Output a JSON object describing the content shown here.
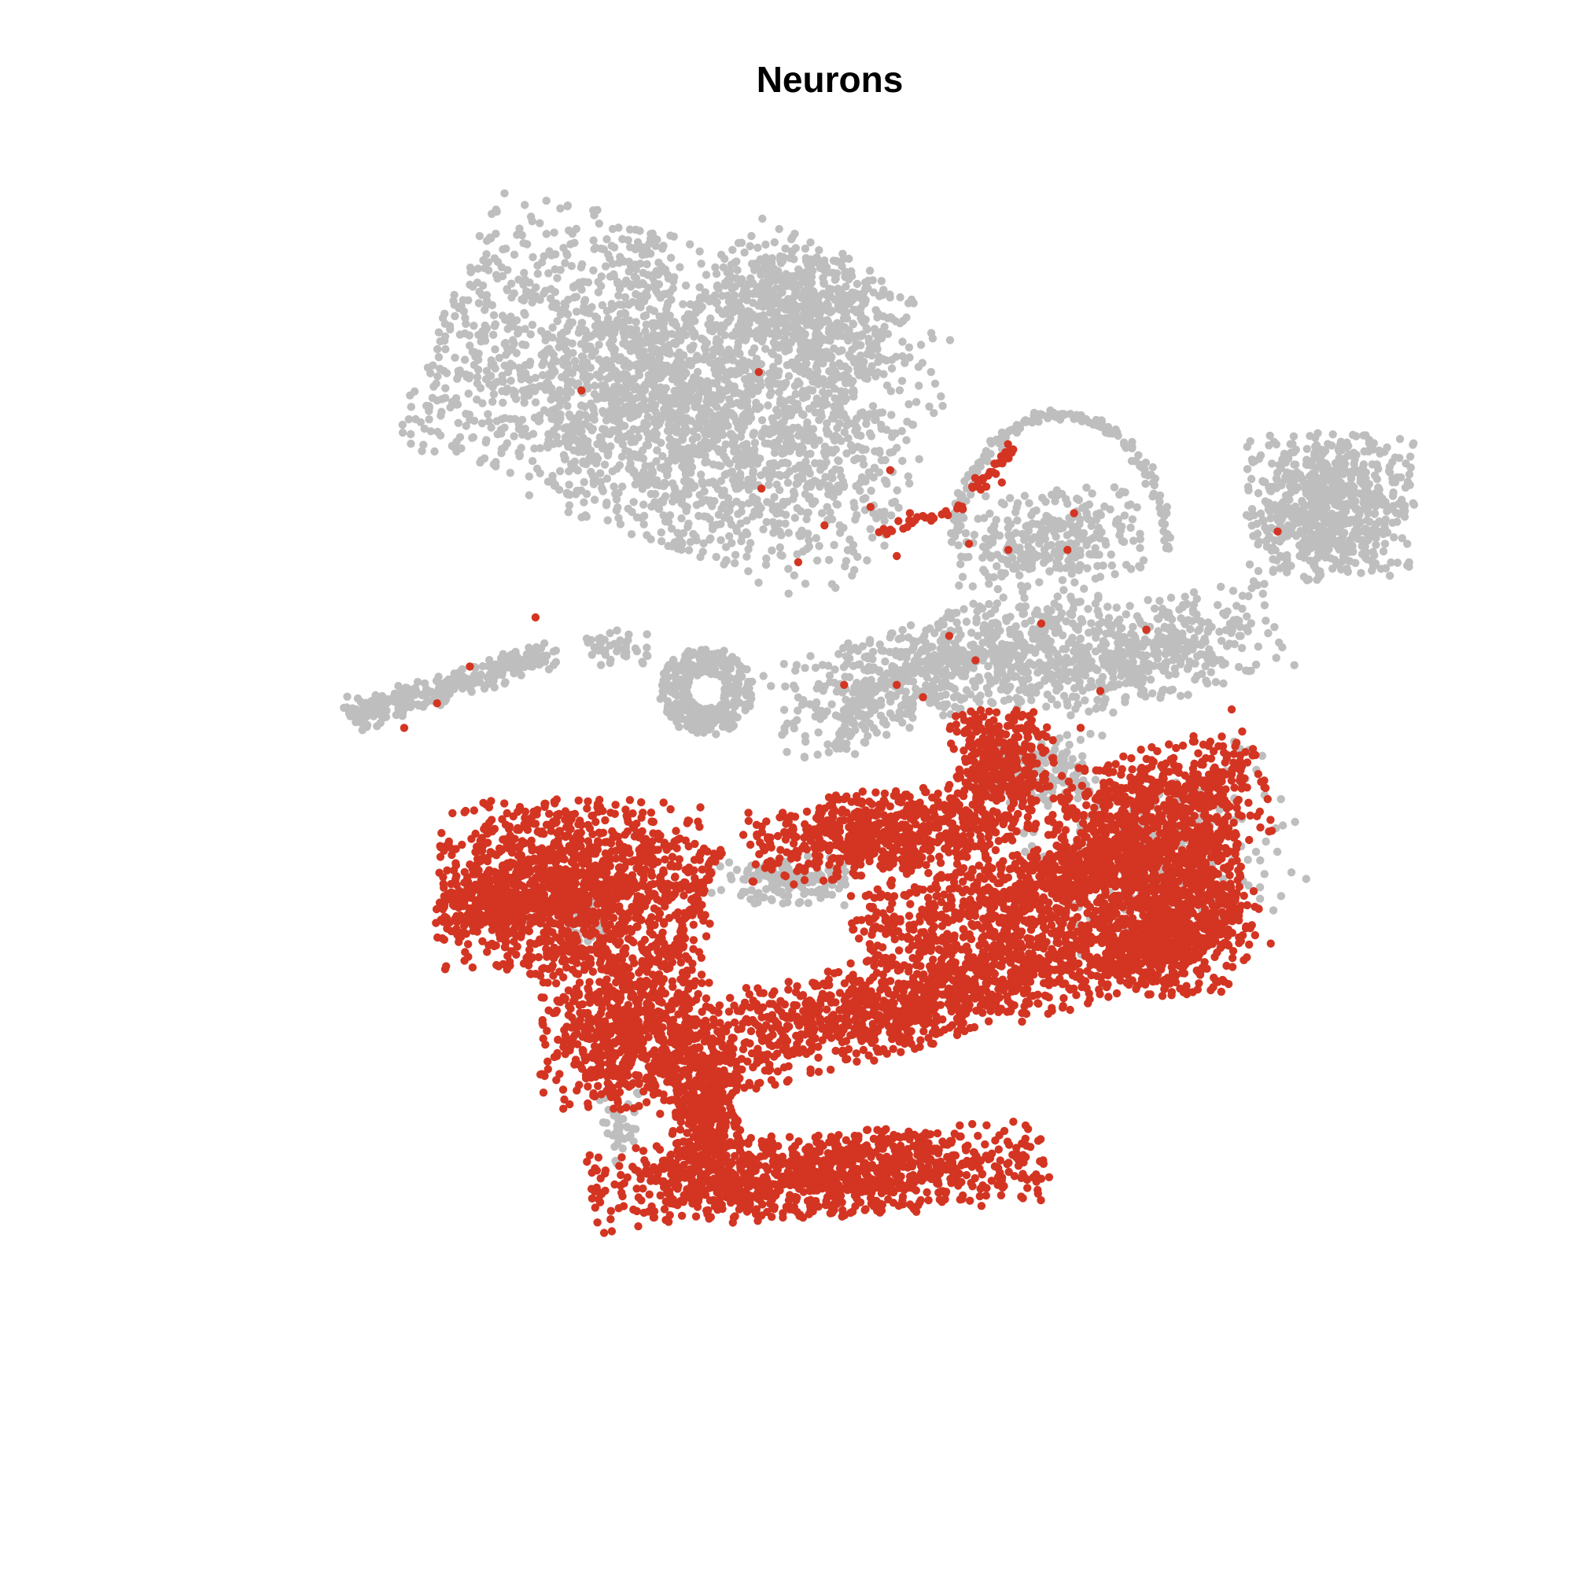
{
  "chart_data": {
    "type": "scatter",
    "title": "Neurons",
    "xlabel": "",
    "ylabel": "",
    "axes_visible": false,
    "grid": false,
    "legend": "none",
    "colors": {
      "neuron": "#d33522",
      "other": "#bebebe"
    },
    "xlim": [
      0,
      100
    ],
    "ylim": [
      0,
      100
    ],
    "series": [
      {
        "group": "other",
        "clusters": [
          {
            "cx": 38.0,
            "cy": 80.5,
            "sx": 12.0,
            "sy": 7.5,
            "n": 2600,
            "rot": -0.38
          },
          {
            "cx": 47.5,
            "cy": 88.0,
            "sx": 4.5,
            "sy": 3.2,
            "n": 500,
            "rot": -0.55
          },
          {
            "cx": 87.5,
            "cy": 71.5,
            "sx": 4.0,
            "sy": 3.8,
            "n": 700,
            "rot": 0.0
          },
          {
            "cx": 58.0,
            "cy": 58.5,
            "sx": 8.5,
            "sy": 2.6,
            "n": 650,
            "rot": 0.32
          },
          {
            "cx": 73.0,
            "cy": 59.5,
            "sx": 7.0,
            "sy": 2.6,
            "n": 500,
            "rot": 0.26
          },
          {
            "cx": 66.0,
            "cy": 69.0,
            "sx": 4.5,
            "sy": 2.4,
            "n": 280,
            "rot": 0.1
          },
          {
            "cx": 46.0,
            "cy": 41.0,
            "sx": 3.5,
            "sy": 1.3,
            "n": 130,
            "rot": 0.0
          },
          {
            "cx": 31.0,
            "cy": 38.0,
            "sx": 1.0,
            "sy": 1.2,
            "n": 40,
            "rot": 0.0
          },
          {
            "cx": 33.5,
            "cy": 21.0,
            "sx": 1.0,
            "sy": 2.0,
            "n": 40,
            "rot": 0.0
          },
          {
            "cx": 75.0,
            "cy": 43.5,
            "sx": 6.5,
            "sy": 4.5,
            "n": 220,
            "rot": 0.3
          },
          {
            "cx": 65.5,
            "cy": 50.0,
            "sx": 3.0,
            "sy": 2.0,
            "n": 150,
            "rot": 0.0
          },
          {
            "cx": 33.5,
            "cy": 60.0,
            "sx": 1.8,
            "sy": 0.9,
            "n": 40,
            "rot": 0.0
          }
        ],
        "ring": {
          "cx": 40.0,
          "cy": 56.5,
          "r_in": 1.4,
          "r_out": 3.6,
          "n": 320
        },
        "arcs": [
          {
            "cx": 67.0,
            "cy": 68.0,
            "rx": 8.0,
            "ry": 11.0,
            "a0": 0.0,
            "a1": 3.1,
            "n": 170
          },
          {
            "cx": 62.0,
            "cy": 52.5,
            "rx": 11.5,
            "ry": 7.0,
            "a0": 1.4,
            "a1": 3.3,
            "n": 140
          }
        ],
        "streaks": [
          {
            "x0": 13.0,
            "y0": 54.5,
            "x1": 28.0,
            "y1": 59.5,
            "w": 1.1,
            "n": 300
          }
        ]
      },
      {
        "group": "neuron",
        "clusters": [
          {
            "cx": 30.0,
            "cy": 40.5,
            "sx": 6.5,
            "sy": 4.5,
            "n": 1300,
            "rot": 0.0
          },
          {
            "cx": 23.5,
            "cy": 39.0,
            "sx": 2.8,
            "sy": 1.6,
            "n": 220,
            "rot": 0.2
          },
          {
            "cx": 34.0,
            "cy": 29.0,
            "sx": 4.2,
            "sy": 4.2,
            "n": 700,
            "rot": 0.0
          },
          {
            "cx": 40.0,
            "cy": 21.5,
            "sx": 1.8,
            "sy": 4.0,
            "n": 350,
            "rot": 0.0
          },
          {
            "cx": 48.5,
            "cy": 17.0,
            "sx": 11.0,
            "sy": 2.2,
            "n": 1100,
            "rot": 0.07
          },
          {
            "cx": 54.0,
            "cy": 45.0,
            "sx": 7.0,
            "sy": 2.2,
            "n": 700,
            "rot": 0.1
          },
          {
            "cx": 57.5,
            "cy": 32.0,
            "sx": 16.0,
            "sy": 2.6,
            "n": 1500,
            "rot": 0.27
          },
          {
            "cx": 65.0,
            "cy": 40.0,
            "sx": 9.0,
            "sy": 2.2,
            "n": 700,
            "rot": 0.2
          },
          {
            "cx": 62.5,
            "cy": 51.0,
            "sx": 2.5,
            "sy": 2.5,
            "n": 320,
            "rot": 0.0
          },
          {
            "cx": 74.0,
            "cy": 47.0,
            "sx": 5.5,
            "sy": 3.0,
            "n": 600,
            "rot": 0.3
          },
          {
            "cx": 75.0,
            "cy": 37.0,
            "sx": 3.2,
            "sy": 3.5,
            "n": 500,
            "rot": 0.0
          },
          {
            "cx": 78.0,
            "cy": 41.5,
            "sx": 2.0,
            "sy": 4.0,
            "n": 250,
            "rot": 0.0
          },
          {
            "cx": 70.0,
            "cy": 42.5,
            "sx": 4.0,
            "sy": 1.4,
            "n": 250,
            "rot": 0.32
          }
        ],
        "specks": [
          [
            44.0,
            82.5
          ],
          [
            30.5,
            81.0
          ],
          [
            54.0,
            74.5
          ],
          [
            44.2,
            73.0
          ],
          [
            62.5,
            73.5
          ],
          [
            55.5,
            71.0
          ],
          [
            60.0,
            68.5
          ],
          [
            49.0,
            70.0
          ],
          [
            52.5,
            71.5
          ],
          [
            47.0,
            67.0
          ],
          [
            22.0,
            58.5
          ],
          [
            19.5,
            55.5
          ],
          [
            17.0,
            53.5
          ],
          [
            27.0,
            62.5
          ],
          [
            83.5,
            69.5
          ],
          [
            68.0,
            71.0
          ],
          [
            67.5,
            68.0
          ],
          [
            65.5,
            62.0
          ],
          [
            58.5,
            61.0
          ],
          [
            60.5,
            59.0
          ],
          [
            54.5,
            57.0
          ],
          [
            50.5,
            57.0
          ],
          [
            56.5,
            56.0
          ],
          [
            70.0,
            56.5
          ],
          [
            68.5,
            53.5
          ],
          [
            73.5,
            61.5
          ],
          [
            63.0,
            68.0
          ],
          [
            54.5,
            67.5
          ],
          [
            79.0,
            52.0
          ],
          [
            80.0,
            55.0
          ]
        ],
        "streaks": [
          {
            "x0": 53.0,
            "y0": 69.5,
            "x1": 60.0,
            "y1": 71.5,
            "w": 0.35,
            "n": 30
          },
          {
            "x0": 60.5,
            "y0": 73.0,
            "x1": 63.5,
            "y1": 76.5,
            "w": 0.35,
            "n": 30
          },
          {
            "x0": 37.0,
            "y0": 34.0,
            "x1": 41.0,
            "y1": 43.5,
            "w": 0.4,
            "n": 60
          }
        ]
      }
    ]
  }
}
